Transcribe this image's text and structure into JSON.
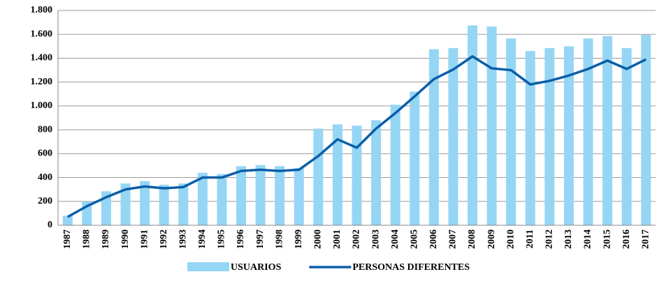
{
  "chart_data": {
    "type": "bar",
    "categories": [
      "1987",
      "1988",
      "1989",
      "1990",
      "1991",
      "1992",
      "1993",
      "1994",
      "1995",
      "1996",
      "1997",
      "1998",
      "1999",
      "2000",
      "2001",
      "2002",
      "2003",
      "2004",
      "2005",
      "2006",
      "2007",
      "2008",
      "2009",
      "2010",
      "2011",
      "2012",
      "2013",
      "2014",
      "2015",
      "2016",
      "2017"
    ],
    "series": [
      {
        "name": "USUARIOS",
        "type": "bar",
        "color": "#95d6f4",
        "values": [
          80,
          200,
          285,
          350,
          370,
          340,
          350,
          440,
          430,
          495,
          505,
          495,
          480,
          810,
          845,
          835,
          880,
          1010,
          1120,
          1475,
          1485,
          1675,
          1665,
          1565,
          1460,
          1485,
          1500,
          1565,
          1585,
          1485,
          1595
        ]
      },
      {
        "name": "PERSONAS DIFERENTES",
        "type": "line",
        "color": "#0b5ea8",
        "values": [
          70,
          160,
          235,
          300,
          325,
          310,
          320,
          400,
          400,
          455,
          465,
          455,
          465,
          580,
          720,
          650,
          810,
          940,
          1080,
          1225,
          1305,
          1415,
          1315,
          1300,
          1180,
          1210,
          1255,
          1310,
          1380,
          1310,
          1390
        ]
      }
    ],
    "ylim": [
      0,
      1800
    ],
    "yticks": [
      0,
      200,
      400,
      600,
      800,
      {
        "value": 1000,
        "label": "1.000"
      },
      {
        "value": 1200,
        "label": "1.200"
      },
      {
        "value": 1400,
        "label": "1.400"
      },
      {
        "value": 1600,
        "label": "1.600"
      },
      {
        "value": 1800,
        "label": "1.800"
      }
    ],
    "grid": true,
    "legend": "bottom"
  }
}
